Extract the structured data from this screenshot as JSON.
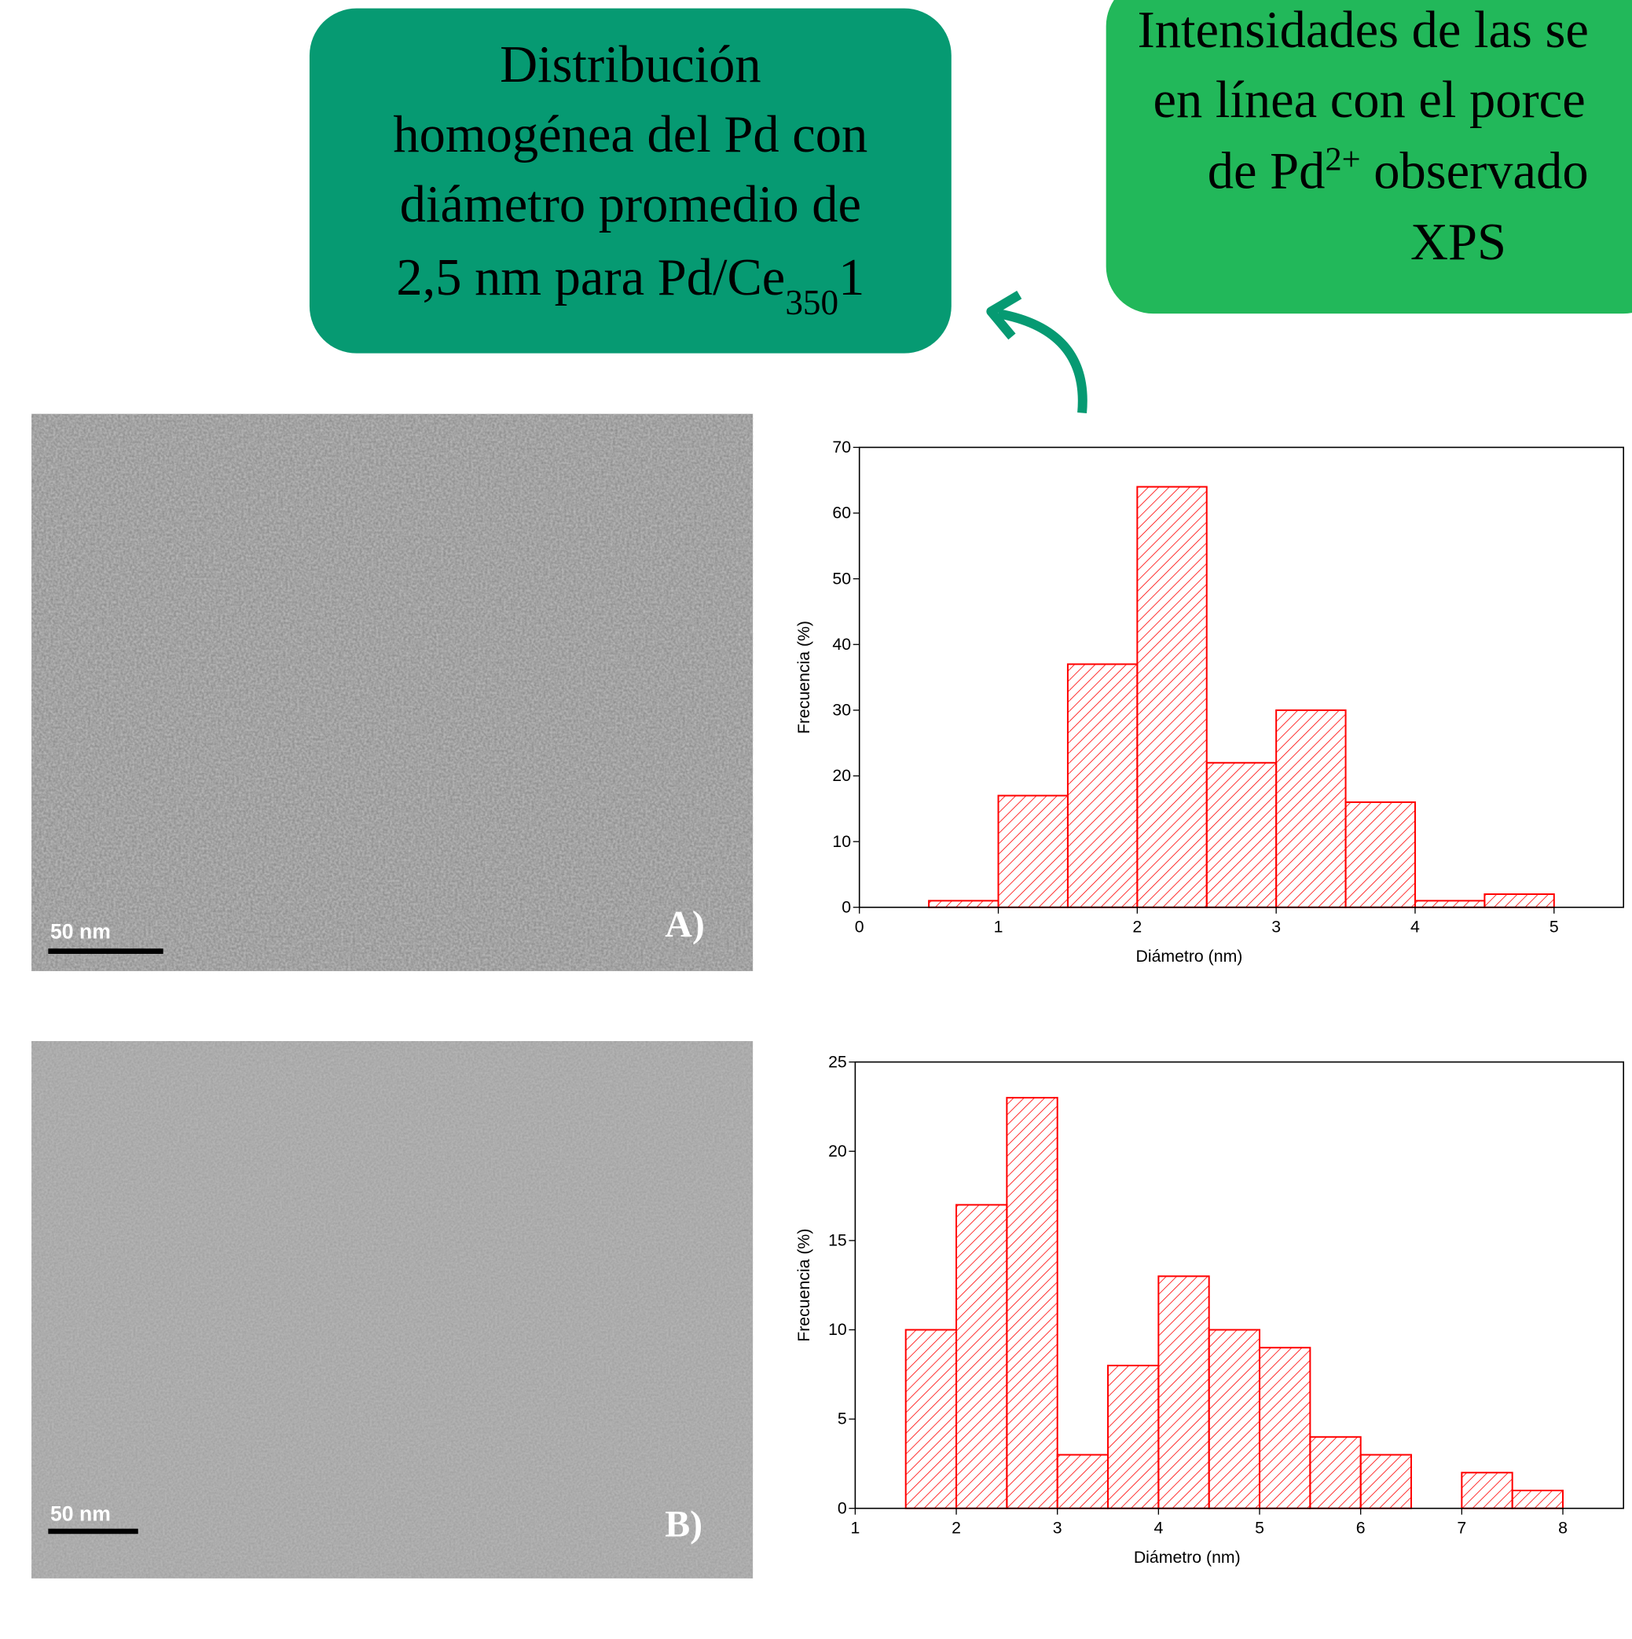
{
  "boxes": [
    {
      "lines": [
        [
          "Distribución"
        ],
        [
          "homogénea del Pd con"
        ],
        [
          "diámetro promedio de"
        ],
        [
          "2,5 nm para Pd/Ce",
          "350",
          "1"
        ]
      ]
    },
    {
      "lines": [
        [
          "Intensidades de las se"
        ],
        [
          "en línea con el porce"
        ],
        [
          "de Pd",
          "2+",
          " observado"
        ],
        [
          "XPS"
        ]
      ]
    }
  ],
  "images": [
    {
      "scale_bar": "50 nm",
      "label": "A)"
    },
    {
      "scale_bar": "50 nm",
      "label": "B)"
    }
  ],
  "chart_data": [
    {
      "type": "histogram",
      "xlabel": "Diámetro (nm)",
      "ylabel": "Frecuencia (%)",
      "color": "#ff0000",
      "bins": [
        0.5,
        1,
        1.5,
        2,
        2.5,
        3,
        3.5,
        4,
        4.5,
        5
      ],
      "values": [
        1,
        17,
        37,
        64,
        22,
        30,
        16,
        1,
        2
      ],
      "xlim": [
        0,
        5.5
      ],
      "xticks": [
        0,
        1,
        2,
        3,
        4,
        5
      ],
      "ylim": [
        0,
        70
      ],
      "yticks": [
        0,
        10,
        20,
        30,
        40,
        50,
        60,
        70
      ]
    },
    {
      "type": "histogram",
      "xlabel": "Diámetro (nm)",
      "ylabel": "Frecuencia (%)",
      "color": "#ff0000",
      "bins": [
        1.5,
        2,
        2.5,
        3,
        3.5,
        4,
        4.5,
        5,
        5.5,
        6,
        6.5,
        7,
        7.5,
        8
      ],
      "values": [
        10,
        17,
        23,
        3,
        8,
        13,
        10,
        9,
        4,
        3,
        0,
        2,
        1
      ],
      "xlim": [
        1,
        8.6
      ],
      "xticks": [
        1,
        2,
        3,
        4,
        5,
        6,
        7,
        8
      ],
      "ylim": [
        0,
        25
      ],
      "yticks": [
        0,
        5,
        10,
        15,
        20,
        25
      ]
    }
  ]
}
